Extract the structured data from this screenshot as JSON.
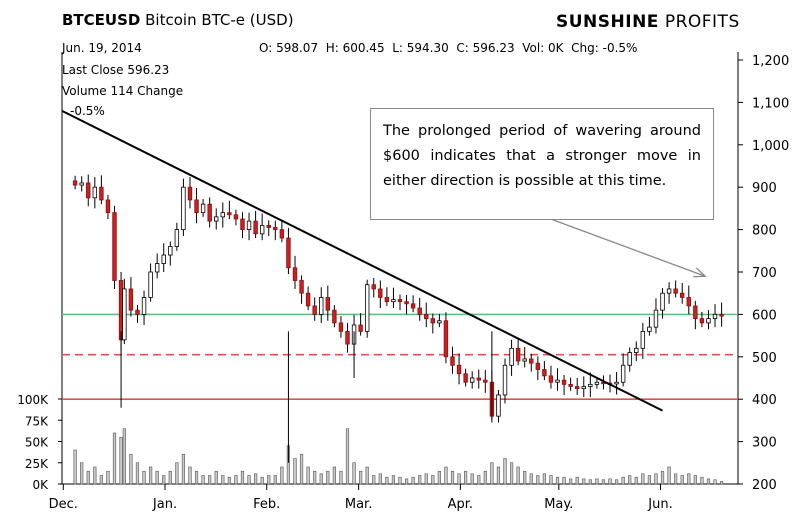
{
  "header": {
    "symbol": "BTCEUSD",
    "name": "Bitcoin BTC-e (USD)",
    "brand_bold": "SUNSHINE",
    "brand_light": " PROFITS",
    "date": "Jun. 19, 2014",
    "ohlc": "O: 598.07  H: 600.45  L: 594.30  C: 596.23  Vol: 0K  Chg: -0.5%"
  },
  "stats": {
    "last_close": "Last Close 596.23",
    "volume": "Volume 114 Change",
    "change": "-0.5%"
  },
  "annotation": "The prolonged period of wavering around $600 indicates that a stronger move in either direction is possible at this time.",
  "chart_data": {
    "type": "candlestick",
    "x_labels": [
      "Dec.",
      "Jan.",
      "Feb.",
      "Mar.",
      "Apr.",
      "May.",
      "Jun."
    ],
    "y_labels": [
      "1,200",
      "1,100",
      "1,000",
      "900",
      "800",
      "700",
      "600",
      "500",
      "400",
      "300",
      "200"
    ],
    "ylim": [
      200,
      1200
    ],
    "volume_labels": [
      "100K",
      "75K",
      "50K",
      "25K",
      "0K"
    ],
    "volume_lim": [
      0,
      100
    ],
    "horizontal_levels": [
      {
        "value": 600,
        "style": "solid",
        "color": "#5cc088"
      },
      {
        "value": 505,
        "style": "dashed",
        "color": "#e05050"
      },
      {
        "value": 400,
        "style": "solid",
        "color": "#e05050"
      }
    ],
    "trendline": {
      "from": {
        "date": "2013-11-30",
        "price": 1080
      },
      "to": {
        "date": "2014-06-01",
        "price": 373
      },
      "color": "#000000"
    },
    "arrow": {
      "from_annotation_to": {
        "date": "2014-06-14",
        "price": 690
      },
      "color": "#888888"
    },
    "series_closes": [
      {
        "date": "2013-12-04",
        "close": 905
      },
      {
        "date": "2013-12-06",
        "close": 910
      },
      {
        "date": "2013-12-08",
        "close": 875
      },
      {
        "date": "2013-12-10",
        "close": 900
      },
      {
        "date": "2013-12-12",
        "close": 870
      },
      {
        "date": "2013-12-14",
        "close": 840
      },
      {
        "date": "2013-12-16",
        "close": 680
      },
      {
        "date": "2013-12-18",
        "close": 540
      },
      {
        "date": "2013-12-19",
        "close": 660
      },
      {
        "date": "2013-12-21",
        "close": 610
      },
      {
        "date": "2013-12-23",
        "close": 600
      },
      {
        "date": "2013-12-25",
        "close": 640
      },
      {
        "date": "2013-12-27",
        "close": 700
      },
      {
        "date": "2013-12-29",
        "close": 720
      },
      {
        "date": "2013-12-31",
        "close": 740
      },
      {
        "date": "2014-01-02",
        "close": 760
      },
      {
        "date": "2014-01-04",
        "close": 800
      },
      {
        "date": "2014-01-06",
        "close": 900
      },
      {
        "date": "2014-01-08",
        "close": 870
      },
      {
        "date": "2014-01-10",
        "close": 840
      },
      {
        "date": "2014-01-12",
        "close": 860
      },
      {
        "date": "2014-01-14",
        "close": 820
      },
      {
        "date": "2014-01-16",
        "close": 830
      },
      {
        "date": "2014-01-18",
        "close": 840
      },
      {
        "date": "2014-01-20",
        "close": 835
      },
      {
        "date": "2014-01-22",
        "close": 825
      },
      {
        "date": "2014-01-24",
        "close": 800
      },
      {
        "date": "2014-01-26",
        "close": 820
      },
      {
        "date": "2014-01-28",
        "close": 790
      },
      {
        "date": "2014-01-30",
        "close": 810
      },
      {
        "date": "2014-02-01",
        "close": 805
      },
      {
        "date": "2014-02-03",
        "close": 800
      },
      {
        "date": "2014-02-05",
        "close": 780
      },
      {
        "date": "2014-02-07",
        "close": 710
      },
      {
        "date": "2014-02-09",
        "close": 680
      },
      {
        "date": "2014-02-11",
        "close": 650
      },
      {
        "date": "2014-02-13",
        "close": 620
      },
      {
        "date": "2014-02-15",
        "close": 600
      },
      {
        "date": "2014-02-17",
        "close": 640
      },
      {
        "date": "2014-02-19",
        "close": 610
      },
      {
        "date": "2014-02-21",
        "close": 580
      },
      {
        "date": "2014-02-23",
        "close": 560
      },
      {
        "date": "2014-02-25",
        "close": 530
      },
      {
        "date": "2014-02-27",
        "close": 575
      },
      {
        "date": "2014-03-01",
        "close": 560
      },
      {
        "date": "2014-03-03",
        "close": 670
      },
      {
        "date": "2014-03-05",
        "close": 660
      },
      {
        "date": "2014-03-07",
        "close": 640
      },
      {
        "date": "2014-03-09",
        "close": 630
      },
      {
        "date": "2014-03-11",
        "close": 635
      },
      {
        "date": "2014-03-13",
        "close": 630
      },
      {
        "date": "2014-03-15",
        "close": 625
      },
      {
        "date": "2014-03-17",
        "close": 615
      },
      {
        "date": "2014-03-19",
        "close": 600
      },
      {
        "date": "2014-03-21",
        "close": 590
      },
      {
        "date": "2014-03-23",
        "close": 580
      },
      {
        "date": "2014-03-25",
        "close": 585
      },
      {
        "date": "2014-03-27",
        "close": 500
      },
      {
        "date": "2014-03-29",
        "close": 480
      },
      {
        "date": "2014-03-31",
        "close": 460
      },
      {
        "date": "2014-04-02",
        "close": 440
      },
      {
        "date": "2014-04-04",
        "close": 450
      },
      {
        "date": "2014-04-06",
        "close": 445
      },
      {
        "date": "2014-04-08",
        "close": 440
      },
      {
        "date": "2014-04-10",
        "close": 360
      },
      {
        "date": "2014-04-12",
        "close": 410
      },
      {
        "date": "2014-04-14",
        "close": 480
      },
      {
        "date": "2014-04-16",
        "close": 520
      },
      {
        "date": "2014-04-18",
        "close": 490
      },
      {
        "date": "2014-04-20",
        "close": 495
      },
      {
        "date": "2014-04-22",
        "close": 485
      },
      {
        "date": "2014-04-24",
        "close": 470
      },
      {
        "date": "2014-04-26",
        "close": 455
      },
      {
        "date": "2014-04-28",
        "close": 440
      },
      {
        "date": "2014-04-30",
        "close": 445
      },
      {
        "date": "2014-05-02",
        "close": 435
      },
      {
        "date": "2014-05-04",
        "close": 430
      },
      {
        "date": "2014-05-06",
        "close": 425
      },
      {
        "date": "2014-05-08",
        "close": 430
      },
      {
        "date": "2014-05-10",
        "close": 435
      },
      {
        "date": "2014-05-12",
        "close": 440
      },
      {
        "date": "2014-05-14",
        "close": 438
      },
      {
        "date": "2014-05-16",
        "close": 436
      },
      {
        "date": "2014-05-18",
        "close": 440
      },
      {
        "date": "2014-05-20",
        "close": 480
      },
      {
        "date": "2014-05-22",
        "close": 510
      },
      {
        "date": "2014-05-24",
        "close": 520
      },
      {
        "date": "2014-05-26",
        "close": 560
      },
      {
        "date": "2014-05-28",
        "close": 570
      },
      {
        "date": "2014-05-30",
        "close": 610
      },
      {
        "date": "2014-06-01",
        "close": 650
      },
      {
        "date": "2014-06-03",
        "close": 660
      },
      {
        "date": "2014-06-05",
        "close": 650
      },
      {
        "date": "2014-06-07",
        "close": 640
      },
      {
        "date": "2014-06-09",
        "close": 620
      },
      {
        "date": "2014-06-11",
        "close": 590
      },
      {
        "date": "2014-06-13",
        "close": 580
      },
      {
        "date": "2014-06-15",
        "close": 590
      },
      {
        "date": "2014-06-17",
        "close": 600
      },
      {
        "date": "2014-06-19",
        "close": 596
      }
    ],
    "volume": [
      {
        "date": "2013-12-04",
        "value": 40
      },
      {
        "date": "2013-12-06",
        "value": 25
      },
      {
        "date": "2013-12-08",
        "value": 15
      },
      {
        "date": "2013-12-10",
        "value": 20
      },
      {
        "date": "2013-12-12",
        "value": 10
      },
      {
        "date": "2013-12-14",
        "value": 15
      },
      {
        "date": "2013-12-16",
        "value": 60
      },
      {
        "date": "2013-12-18",
        "value": 55
      },
      {
        "date": "2013-12-19",
        "value": 65
      },
      {
        "date": "2013-12-21",
        "value": 35
      },
      {
        "date": "2013-12-23",
        "value": 25
      },
      {
        "date": "2013-12-25",
        "value": 15
      },
      {
        "date": "2013-12-27",
        "value": 20
      },
      {
        "date": "2013-12-29",
        "value": 15
      },
      {
        "date": "2013-12-31",
        "value": 10
      },
      {
        "date": "2014-01-02",
        "value": 15
      },
      {
        "date": "2014-01-04",
        "value": 25
      },
      {
        "date": "2014-01-06",
        "value": 35
      },
      {
        "date": "2014-01-08",
        "value": 20
      },
      {
        "date": "2014-01-10",
        "value": 15
      },
      {
        "date": "2014-01-12",
        "value": 10
      },
      {
        "date": "2014-01-14",
        "value": 10
      },
      {
        "date": "2014-01-16",
        "value": 15
      },
      {
        "date": "2014-01-18",
        "value": 10
      },
      {
        "date": "2014-01-20",
        "value": 8
      },
      {
        "date": "2014-01-22",
        "value": 10
      },
      {
        "date": "2014-01-24",
        "value": 15
      },
      {
        "date": "2014-01-26",
        "value": 10
      },
      {
        "date": "2014-01-28",
        "value": 12
      },
      {
        "date": "2014-01-30",
        "value": 8
      },
      {
        "date": "2014-02-01",
        "value": 10
      },
      {
        "date": "2014-02-03",
        "value": 10
      },
      {
        "date": "2014-02-05",
        "value": 20
      },
      {
        "date": "2014-02-07",
        "value": 45
      },
      {
        "date": "2014-02-09",
        "value": 30
      },
      {
        "date": "2014-02-11",
        "value": 35
      },
      {
        "date": "2014-02-13",
        "value": 20
      },
      {
        "date": "2014-02-15",
        "value": 15
      },
      {
        "date": "2014-02-17",
        "value": 12
      },
      {
        "date": "2014-02-19",
        "value": 15
      },
      {
        "date": "2014-02-21",
        "value": 20
      },
      {
        "date": "2014-02-23",
        "value": 15
      },
      {
        "date": "2014-02-25",
        "value": 65
      },
      {
        "date": "2014-02-27",
        "value": 25
      },
      {
        "date": "2014-03-01",
        "value": 15
      },
      {
        "date": "2014-03-03",
        "value": 20
      },
      {
        "date": "2014-03-05",
        "value": 10
      },
      {
        "date": "2014-03-07",
        "value": 12
      },
      {
        "date": "2014-03-09",
        "value": 8
      },
      {
        "date": "2014-03-11",
        "value": 10
      },
      {
        "date": "2014-03-13",
        "value": 8
      },
      {
        "date": "2014-03-15",
        "value": 6
      },
      {
        "date": "2014-03-17",
        "value": 8
      },
      {
        "date": "2014-03-19",
        "value": 10
      },
      {
        "date": "2014-03-21",
        "value": 12
      },
      {
        "date": "2014-03-23",
        "value": 10
      },
      {
        "date": "2014-03-25",
        "value": 15
      },
      {
        "date": "2014-03-27",
        "value": 20
      },
      {
        "date": "2014-03-29",
        "value": 15
      },
      {
        "date": "2014-03-31",
        "value": 12
      },
      {
        "date": "2014-04-02",
        "value": 15
      },
      {
        "date": "2014-04-04",
        "value": 12
      },
      {
        "date": "2014-04-06",
        "value": 10
      },
      {
        "date": "2014-04-08",
        "value": 15
      },
      {
        "date": "2014-04-10",
        "value": 25
      },
      {
        "date": "2014-04-12",
        "value": 20
      },
      {
        "date": "2014-04-14",
        "value": 30
      },
      {
        "date": "2014-04-16",
        "value": 25
      },
      {
        "date": "2014-04-18",
        "value": 20
      },
      {
        "date": "2014-04-20",
        "value": 15
      },
      {
        "date": "2014-04-22",
        "value": 12
      },
      {
        "date": "2014-04-24",
        "value": 10
      },
      {
        "date": "2014-04-26",
        "value": 12
      },
      {
        "date": "2014-04-28",
        "value": 10
      },
      {
        "date": "2014-04-30",
        "value": 8
      },
      {
        "date": "2014-05-02",
        "value": 8
      },
      {
        "date": "2014-05-04",
        "value": 6
      },
      {
        "date": "2014-05-06",
        "value": 8
      },
      {
        "date": "2014-05-08",
        "value": 6
      },
      {
        "date": "2014-05-10",
        "value": 5
      },
      {
        "date": "2014-05-12",
        "value": 6
      },
      {
        "date": "2014-05-14",
        "value": 5
      },
      {
        "date": "2014-05-16",
        "value": 6
      },
      {
        "date": "2014-05-18",
        "value": 5
      },
      {
        "date": "2014-05-20",
        "value": 8
      },
      {
        "date": "2014-05-22",
        "value": 10
      },
      {
        "date": "2014-05-24",
        "value": 8
      },
      {
        "date": "2014-05-26",
        "value": 12
      },
      {
        "date": "2014-05-28",
        "value": 10
      },
      {
        "date": "2014-05-30",
        "value": 12
      },
      {
        "date": "2014-06-01",
        "value": 15
      },
      {
        "date": "2014-06-03",
        "value": 20
      },
      {
        "date": "2014-06-05",
        "value": 12
      },
      {
        "date": "2014-06-07",
        "value": 10
      },
      {
        "date": "2014-06-09",
        "value": 12
      },
      {
        "date": "2014-06-11",
        "value": 10
      },
      {
        "date": "2014-06-13",
        "value": 8
      },
      {
        "date": "2014-06-15",
        "value": 6
      },
      {
        "date": "2014-06-17",
        "value": 5
      },
      {
        "date": "2014-06-19",
        "value": 3
      }
    ]
  }
}
